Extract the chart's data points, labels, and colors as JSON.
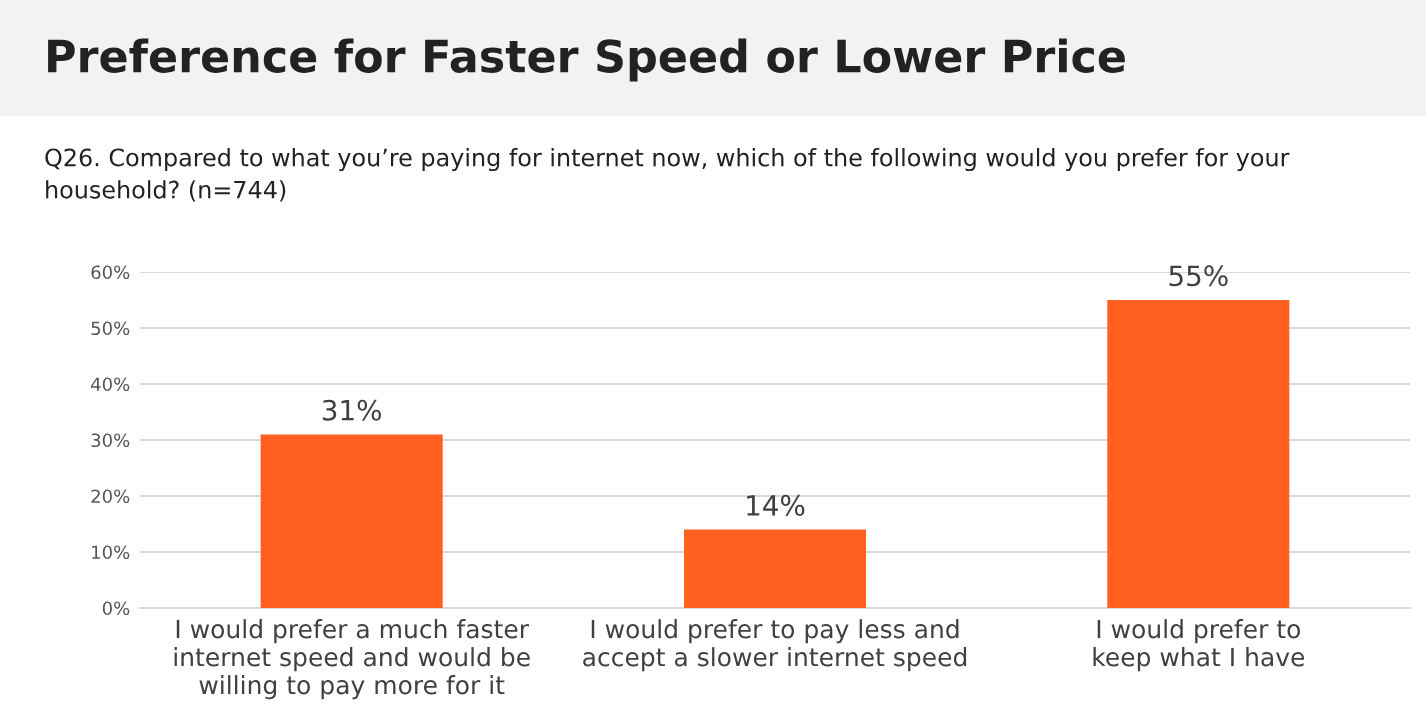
{
  "chart_data": {
    "type": "bar",
    "title": "Preference for Faster Speed or Lower Price",
    "subtitle": "Q26. Compared to what you’re paying for internet now, which of the following would you prefer for your household? (n=744)",
    "categories": [
      "I would prefer a much faster\ninternet speed and would be\nwilling to pay more for it",
      "I would prefer to pay less and\naccept a slower internet speed",
      "I would prefer to\nkeep what I have"
    ],
    "values": [
      31,
      14,
      55
    ],
    "value_labels": [
      "31%",
      "14%",
      "55%"
    ],
    "color": "#ff5f1f",
    "ylim": [
      0,
      60
    ],
    "yticks": [
      {
        "value": 0,
        "label": "0%"
      },
      {
        "value": 10,
        "label": "10%"
      },
      {
        "value": 20,
        "label": "20%"
      },
      {
        "value": 30,
        "label": "30%"
      },
      {
        "value": 40,
        "label": "40%"
      },
      {
        "value": 50,
        "label": "50%"
      },
      {
        "value": 60,
        "label": "60%"
      }
    ],
    "grid": "y"
  }
}
